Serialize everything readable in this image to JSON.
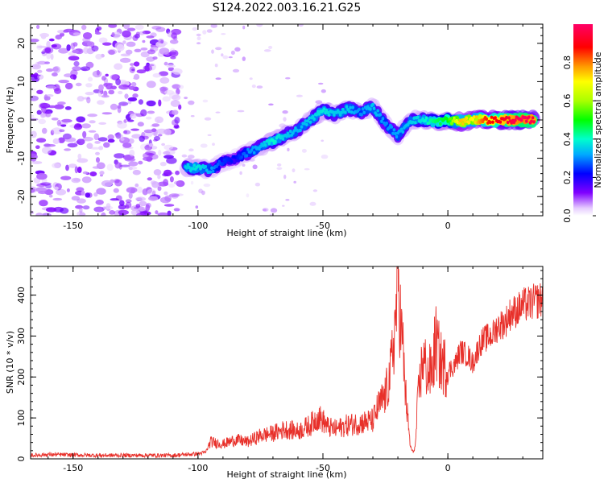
{
  "chart_data": [
    {
      "type": "heatmap",
      "title": "S124.2022.003.16.21.G25",
      "xlabel": "Height of straight line (km)",
      "ylabel": "Frequency (Hz)",
      "xlim": [
        -167,
        38
      ],
      "ylim": [
        -25,
        25
      ],
      "x_ticks": [
        "-150",
        "-100",
        "-50",
        "0"
      ],
      "y_ticks": [
        "20",
        "10",
        "0",
        "-10",
        "-20"
      ],
      "colorbar": {
        "label": "Normalized spectral amplitude",
        "range": [
          0,
          1
        ],
        "ticks": [
          "0.0",
          "0.2",
          "0.4",
          "0.6",
          "0.8"
        ]
      },
      "ridge": [
        {
          "x": -105,
          "y": -12.5,
          "amp": 0.35
        },
        {
          "x": -100,
          "y": -12.5,
          "amp": 0.38
        },
        {
          "x": -95,
          "y": -13,
          "amp": 0.32
        },
        {
          "x": -90,
          "y": -11,
          "amp": 0.25
        },
        {
          "x": -85,
          "y": -10,
          "amp": 0.22
        },
        {
          "x": -80,
          "y": -8.5,
          "amp": 0.3
        },
        {
          "x": -75,
          "y": -7,
          "amp": 0.33
        },
        {
          "x": -70,
          "y": -5.5,
          "amp": 0.4
        },
        {
          "x": -65,
          "y": -4,
          "amp": 0.35
        },
        {
          "x": -60,
          "y": -2.5,
          "amp": 0.33
        },
        {
          "x": -55,
          "y": 0,
          "amp": 0.35
        },
        {
          "x": -50,
          "y": 2.5,
          "amp": 0.38
        },
        {
          "x": -45,
          "y": 1.5,
          "amp": 0.35
        },
        {
          "x": -40,
          "y": 3,
          "amp": 0.35
        },
        {
          "x": -35,
          "y": 2,
          "amp": 0.3
        },
        {
          "x": -30,
          "y": 3.5,
          "amp": 0.35
        },
        {
          "x": -25,
          "y": -1,
          "amp": 0.3
        },
        {
          "x": -20,
          "y": -4,
          "amp": 0.32
        },
        {
          "x": -15,
          "y": 0,
          "amp": 0.35
        },
        {
          "x": -10,
          "y": 0,
          "amp": 0.38
        },
        {
          "x": -5,
          "y": -0.5,
          "amp": 0.45
        },
        {
          "x": 0,
          "y": 0,
          "amp": 0.5
        },
        {
          "x": 5,
          "y": -0.5,
          "amp": 0.75
        },
        {
          "x": 10,
          "y": 0,
          "amp": 0.7
        },
        {
          "x": 15,
          "y": 0,
          "amp": 0.85
        },
        {
          "x": 20,
          "y": 0,
          "amp": 0.9
        },
        {
          "x": 25,
          "y": 0,
          "amp": 0.95
        },
        {
          "x": 30,
          "y": 0,
          "amp": 1.0
        },
        {
          "x": 35,
          "y": 0,
          "amp": 0.95
        }
      ]
    },
    {
      "type": "line",
      "xlabel": "Height of straight line (km)",
      "ylabel": "SNR (10 * v/v)",
      "xlim": [
        -167,
        38
      ],
      "ylim": [
        0,
        470
      ],
      "x_ticks": [
        "-150",
        "-100",
        "-50",
        "0"
      ],
      "y_ticks": [
        "0",
        "100",
        "200",
        "300",
        "400"
      ],
      "color": "#e8302a",
      "series": [
        {
          "x": [
            -167,
            -160,
            -150,
            -140,
            -130,
            -120,
            -110,
            -105,
            -100,
            -97,
            -95,
            -90,
            -85,
            -80,
            -75,
            -70,
            -65,
            -60,
            -55,
            -52,
            -50,
            -48,
            -45,
            -40,
            -35,
            -30,
            -28,
            -25,
            -23,
            -21,
            -20,
            -19,
            -18,
            -17,
            -16,
            -15,
            -14,
            -13,
            -12,
            -10,
            -8,
            -6,
            -5,
            -3,
            0,
            3,
            5,
            8,
            10,
            13,
            15,
            18,
            20,
            23,
            25,
            28,
            30,
            33,
            35,
            38
          ],
          "y": [
            8,
            10,
            9,
            8,
            8,
            8,
            8,
            10,
            12,
            15,
            40,
            35,
            45,
            40,
            55,
            60,
            70,
            65,
            80,
            100,
            90,
            75,
            70,
            80,
            85,
            90,
            120,
            150,
            200,
            320,
            440,
            330,
            260,
            160,
            90,
            30,
            15,
            30,
            140,
            240,
            200,
            210,
            280,
            230,
            210,
            230,
            260,
            250,
            230,
            280,
            290,
            300,
            320,
            330,
            350,
            360,
            370,
            375,
            380,
            385
          ]
        }
      ]
    }
  ]
}
